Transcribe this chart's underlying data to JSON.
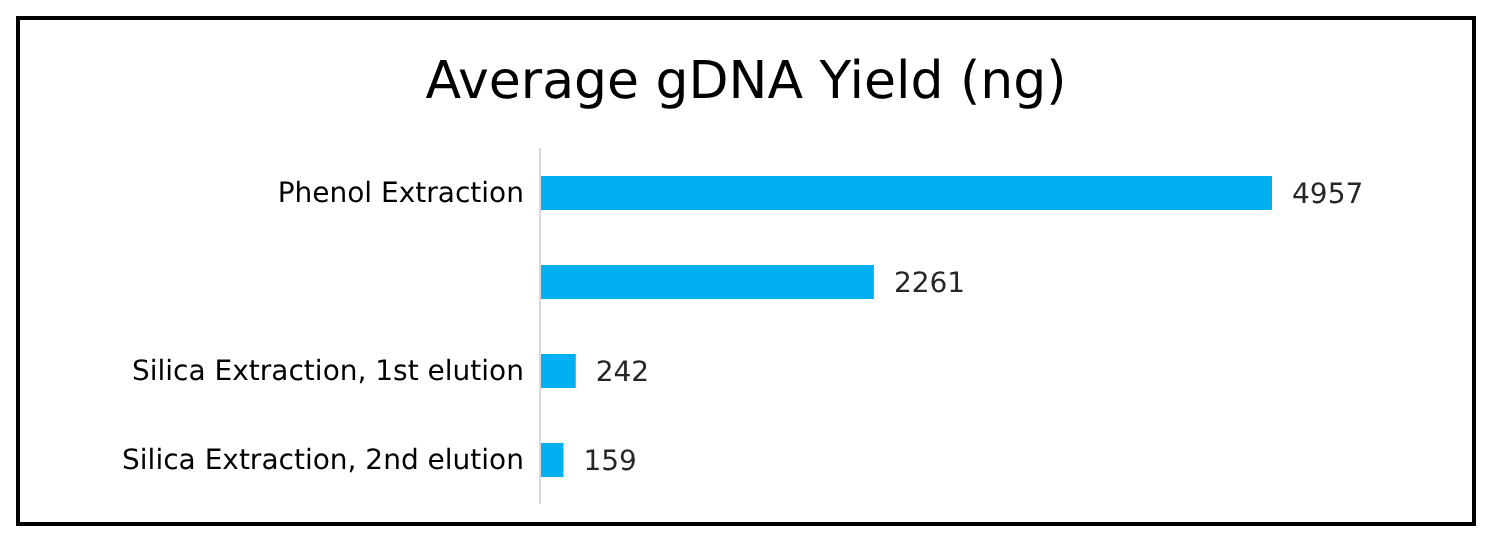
{
  "chart_data": {
    "type": "bar",
    "orientation": "horizontal",
    "title": "Average gDNA Yield (ng)",
    "categories": [
      "Phenol Extraction",
      null,
      "Silica Extraction, 1st elution",
      "Silica Extraction, 2nd elution"
    ],
    "values": [
      4957,
      2261,
      242,
      159
    ],
    "color": "#00b0f0",
    "data_labels": true
  }
}
